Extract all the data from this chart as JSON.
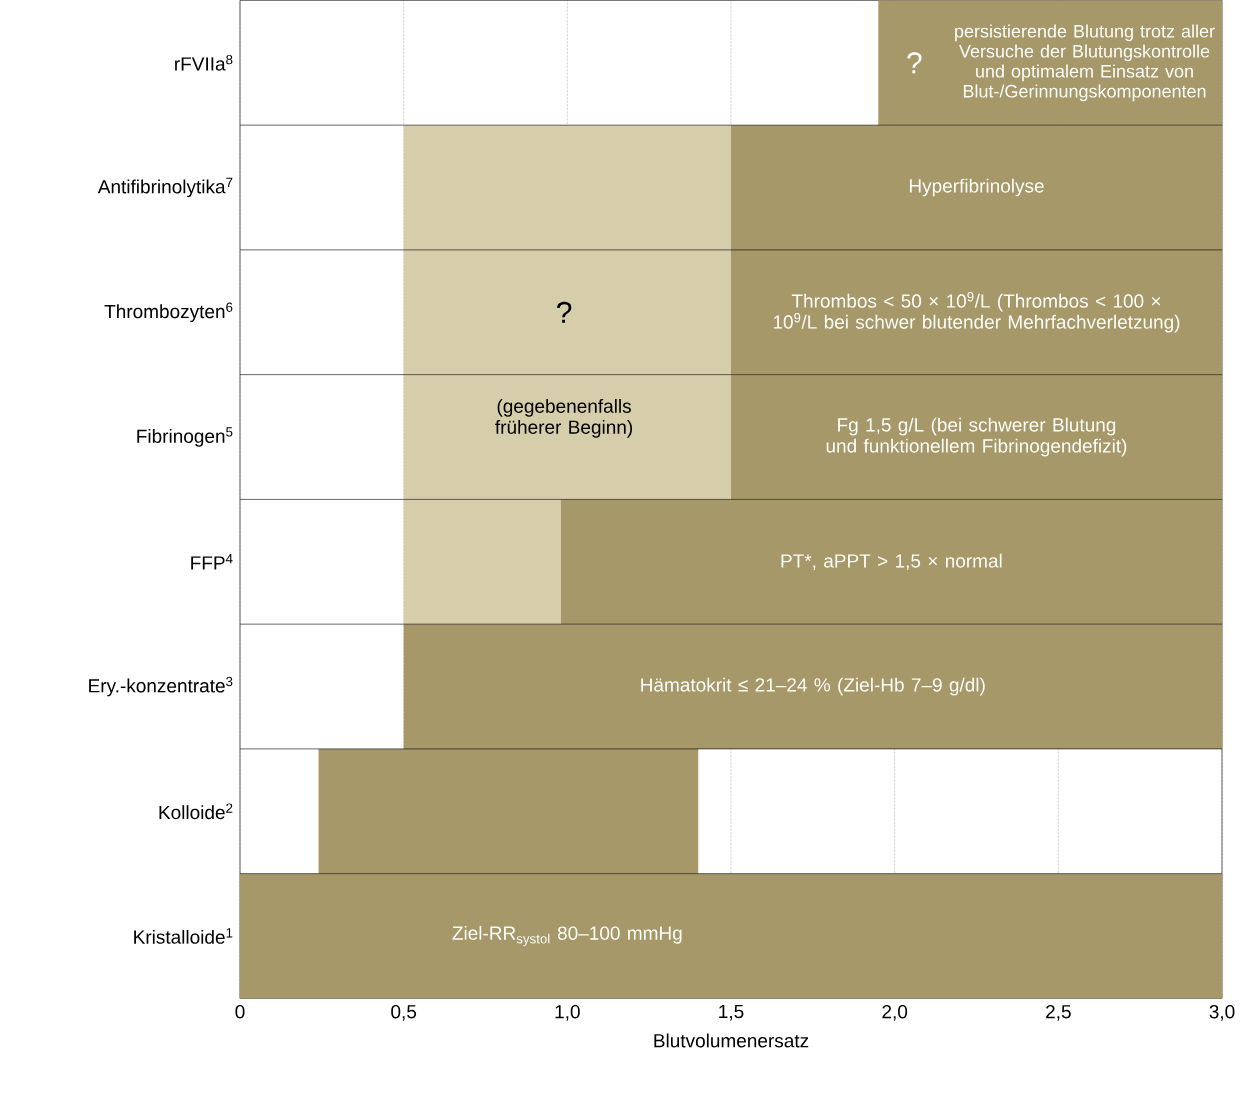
{
  "chart_data": {
    "type": "bar",
    "orientation": "horizontal",
    "categories": [
      "rFVIIa$^{8}$",
      "Antifibrinolytika$^{7}$",
      "Thrombozyten$^{6}$",
      "Fibrinogen$^{5}$",
      "FFP$^{4}$",
      "Ery.-konzentrate$^{3}$",
      "Kolloide$^{2}$",
      "Kristalloide$^{1}$"
    ],
    "series": [
      {
        "color": "#d6cdab",
        "base": [
          null,
          0.5,
          0.5,
          0.5,
          0.5,
          null,
          null,
          null
        ],
        "values": [
          null,
          1.0,
          1.0,
          1.0,
          0.48,
          null,
          null,
          null
        ]
      },
      {
        "color": "#a69868",
        "base": [
          1.95,
          1.5,
          1.5,
          1.5,
          0.98,
          0.5,
          0.24,
          0
        ],
        "values": [
          1.05,
          1.5,
          1.5,
          1.5,
          2.02,
          2.5,
          1.16,
          3.0
        ]
      }
    ],
    "xlim": [
      0,
      3.0
    ],
    "xticks": [
      0,
      {
        "value": 0.5,
        "label": "0,5"
      },
      {
        "value": 1.0,
        "label": "1,0"
      },
      {
        "value": 1.5,
        "label": "1,5"
      },
      {
        "value": 2.0,
        "label": "2,0"
      },
      {
        "value": 2.5,
        "label": "2,5"
      },
      {
        "value": 3.0,
        "label": "3,0"
      }
    ],
    "xlabel": "Blutvolumenersatz",
    "grid": "x",
    "annotations": [
      "?",
      "persistierende Blutung trotz aller Versuche der Blutungskontrolle und optimalem Einsatz von Blut-/Gerinnungskomponenten",
      "Hyperfibrinolyse",
      "?",
      "Thrombos < 50 × 10$^{9}$/L (Thrombos < 100 × 10$^{9}$/L bei schwer blutender Mehrfachverletzung)",
      "(gegebenenfalls früherer Beginn)",
      "Fg 1,5 g/L (bei schwerer Blutung und funktionellem Fibrinogendefizit)",
      "PT*, aPPT > 1,5 × normal",
      "Hämatokrit ≤ 21–24 % (Ziel-Hb 7–9 g/dl)",
      "Ziel-RR$_{systol}$ 80–100 mmHg"
    ]
  }
}
